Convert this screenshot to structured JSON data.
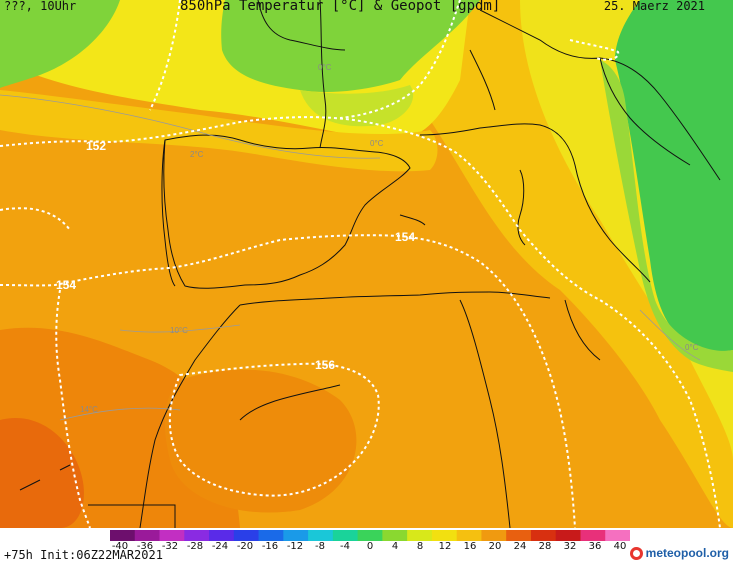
{
  "header": {
    "left": "???, 10Uhr",
    "title": "850hPa Temperatur [°C] & Geopot [gpdm]",
    "date": "25. Maerz 2021"
  },
  "isolines": [
    {
      "label": "152"
    },
    {
      "label": "154"
    },
    {
      "label": "154"
    },
    {
      "label": "156"
    }
  ],
  "temp_labels": [
    "0°C",
    "2°C",
    "0°C",
    "10°C",
    "14°C",
    "0°C"
  ],
  "colorbar": {
    "ticks": [
      "-40",
      "-36",
      "-32",
      "-28",
      "-24",
      "-20",
      "-16",
      "-12",
      "-8",
      "-4",
      "0",
      "4",
      "8",
      "12",
      "16",
      "20",
      "24",
      "28",
      "32",
      "36",
      "40"
    ],
    "colors": [
      "#6d0f6d",
      "#9a1a9a",
      "#c22fc2",
      "#8a2be2",
      "#5a2be8",
      "#2a3fe8",
      "#1a6ae8",
      "#1a9ae8",
      "#1ac7d8",
      "#1ad39a",
      "#3ad35a",
      "#8ad830",
      "#d8e81a",
      "#f2e010",
      "#f5c010",
      "#f09a10",
      "#e86010",
      "#d83010",
      "#c81a1a",
      "#e8307a",
      "#f570c0"
    ]
  },
  "footer": {
    "init": "+75h Init:06Z22MAR2021",
    "brand": "meteopool.org"
  }
}
